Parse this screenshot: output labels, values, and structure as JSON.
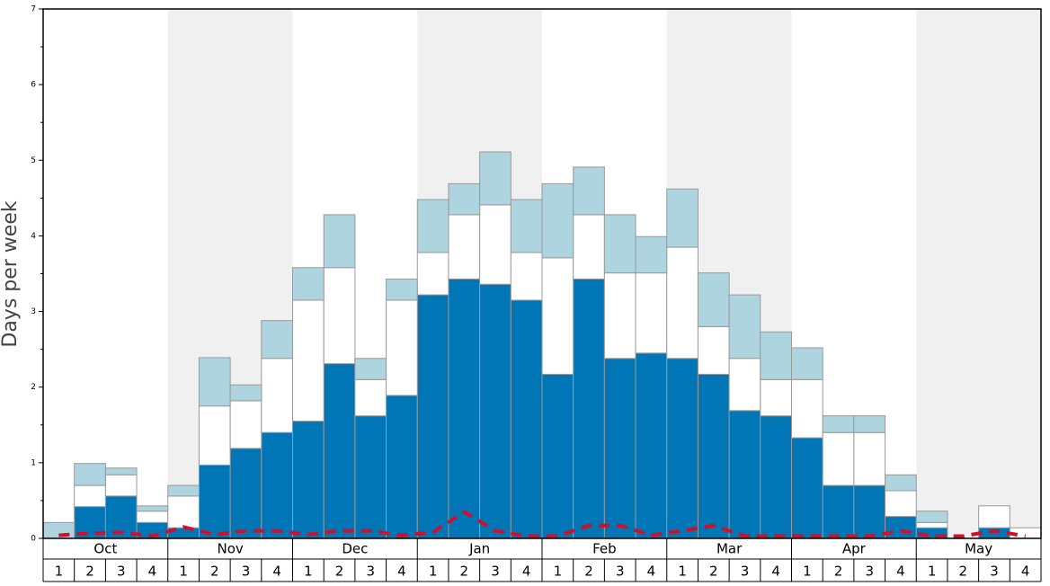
{
  "chart_data": {
    "type": "bar",
    "stacked": true,
    "y_label": "Days per week",
    "months": [
      "Oct",
      "Nov",
      "Dec",
      "Jan",
      "Feb",
      "Mar",
      "Apr",
      "May"
    ],
    "categories": [
      "1",
      "2",
      "3",
      "4",
      "1",
      "2",
      "3",
      "4",
      "1",
      "2",
      "3",
      "4",
      "1",
      "2",
      "3",
      "4",
      "1",
      "2",
      "3",
      "4",
      "1",
      "2",
      "3",
      "4",
      "1",
      "2",
      "3",
      "4",
      "1",
      "2",
      "3",
      "4"
    ],
    "series": [
      {
        "color": "#0076b6",
        "values": [
          0,
          0.42,
          0.56,
          0.21,
          0.14,
          0.97,
          1.19,
          1.4,
          1.55,
          2.31,
          1.62,
          1.89,
          3.22,
          3.43,
          3.36,
          3.15,
          2.17,
          3.43,
          2.38,
          2.45,
          2.38,
          2.17,
          1.69,
          1.62,
          1.33,
          0.7,
          0.7,
          0.29,
          0.14,
          0,
          0.14,
          0
        ]
      },
      {
        "color": "#ffffff",
        "values": [
          0,
          0.28,
          0.28,
          0.15,
          0.42,
          0.78,
          0.63,
          0.98,
          1.6,
          1.27,
          0.48,
          1.26,
          0.56,
          0.85,
          1.05,
          0.63,
          1.54,
          0.85,
          1.13,
          1.06,
          1.47,
          0.63,
          0.69,
          0.48,
          0.77,
          0.7,
          0.7,
          0.34,
          0.07,
          0,
          0.29,
          0.14
        ]
      },
      {
        "color": "#aed4e0",
        "values": [
          0.21,
          0.29,
          0.09,
          0.07,
          0.14,
          0.64,
          0.21,
          0.5,
          0.43,
          0.7,
          0.28,
          0.28,
          0.7,
          0.41,
          0.7,
          0.7,
          0.98,
          0.63,
          0.77,
          0.48,
          0.77,
          0.71,
          0.84,
          0.63,
          0.42,
          0.22,
          0.22,
          0.21,
          0.15,
          0,
          0,
          0
        ]
      },
      {
        "type": "line",
        "color": "#d0102b",
        "dashed": true,
        "values": [
          0.04,
          0.07,
          0.08,
          0.03,
          0.15,
          0.05,
          0.1,
          0.1,
          0.05,
          0.1,
          0.1,
          0.04,
          0.08,
          0.35,
          0.1,
          0.03,
          0.03,
          0.17,
          0.17,
          0.04,
          0.1,
          0.17,
          0.03,
          0.03,
          0.03,
          0.03,
          0.03,
          0.1,
          0.03,
          0.03,
          0.1,
          0.03
        ]
      }
    ],
    "ylim": [
      0,
      7
    ],
    "yticks": [
      0,
      1,
      2,
      3,
      4,
      5,
      6,
      7
    ],
    "minor_yticks": [
      0.5,
      1.5,
      2.5,
      3.5,
      4.5,
      5.5,
      6.5
    ],
    "band_color": "#f0f0f0"
  }
}
